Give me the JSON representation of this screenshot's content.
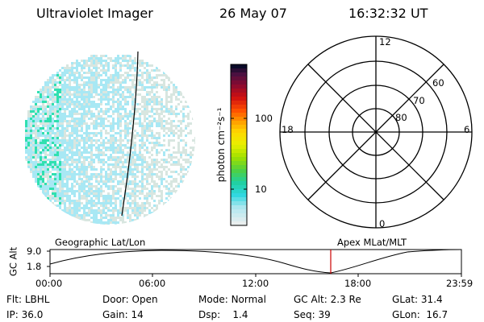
{
  "header": {
    "instrument": "Ultraviolet Imager",
    "date": "26 May 07",
    "time": "16:32:32 UT"
  },
  "colorbar": {
    "label": "photon cm⁻²s⁻¹",
    "ticks": [
      "100",
      "10"
    ]
  },
  "polar_plot": {
    "mlt_labels": [
      "12",
      "18",
      "6",
      "0"
    ],
    "mlat_labels": [
      "60",
      "70",
      "80"
    ]
  },
  "timeline": {
    "ylabel": "GC Alt",
    "yticks": [
      "9.0",
      "1.8"
    ],
    "left_caption": "Geographic Lat/Lon",
    "right_caption": "Apex MLat/MLT",
    "xticks": [
      "00:00",
      "06:00",
      "12:00",
      "18:00",
      "23:59"
    ]
  },
  "status": {
    "row1": [
      {
        "label": "Flt:",
        "value": "LBHL"
      },
      {
        "label": "Door:",
        "value": "Open"
      },
      {
        "label": "Mode:",
        "value": "Normal"
      },
      {
        "label": "GC Alt:",
        "value": "2.3 Re"
      },
      {
        "label": "GLat:",
        "value": "31.4"
      }
    ],
    "row2": [
      {
        "label": "IP:",
        "value": "36.0"
      },
      {
        "label": "Gain:",
        "value": "14"
      },
      {
        "label": "Dsp:",
        "value": "1.4"
      },
      {
        "label": "Seq:",
        "value": "39"
      },
      {
        "label": "GLon:",
        "value": "16.7"
      }
    ]
  },
  "colors": {
    "marker": "#cc0000",
    "dim_pixels": "#d8e6e0",
    "cyan_pixels": "#a8e8f4",
    "green_pixels": "#30e0b0"
  }
}
